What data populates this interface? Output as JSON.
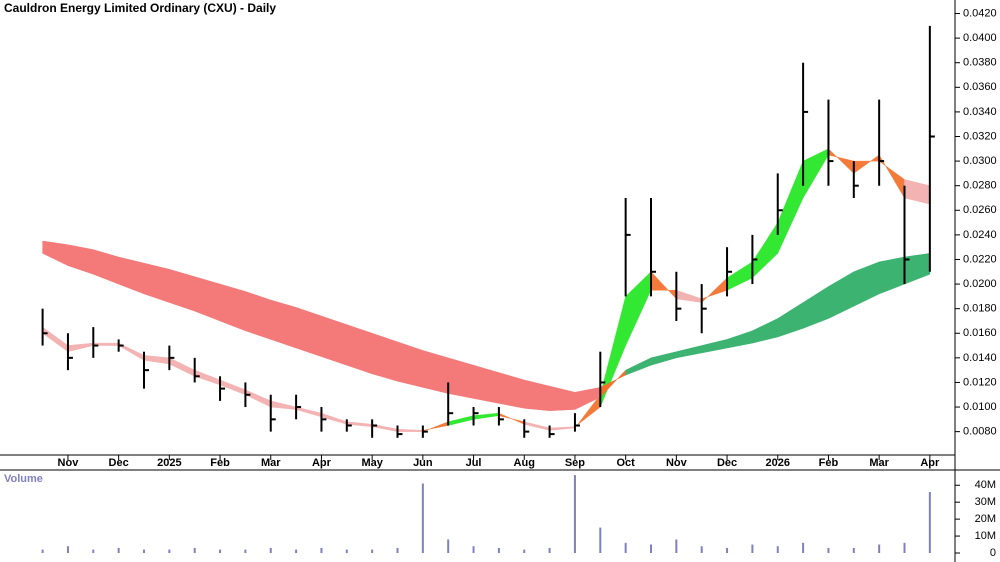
{
  "chart_data": {
    "type": "ohlc",
    "title": "Cauldron Energy Limited Ordinary (CXU) - Daily",
    "categories": [
      null,
      "Nov",
      null,
      "Dec",
      null,
      "2025",
      null,
      "Feb",
      null,
      "Mar",
      null,
      "Apr",
      null,
      "May",
      null,
      "Jun",
      null,
      "Jul",
      null,
      "Aug",
      null,
      "Sep",
      null,
      "Oct",
      null,
      "Nov",
      null,
      "Dec",
      null,
      "2026",
      null,
      "Feb",
      null,
      "Mar",
      null,
      "Apr"
    ],
    "high": [
      0.018,
      0.016,
      0.0165,
      0.0155,
      0.0145,
      0.015,
      0.014,
      0.0125,
      0.012,
      0.011,
      0.011,
      0.01,
      0.009,
      0.009,
      0.0085,
      0.0085,
      0.012,
      0.01,
      0.01,
      0.009,
      0.0085,
      0.0095,
      0.0145,
      0.027,
      0.027,
      0.021,
      0.02,
      0.023,
      0.024,
      0.029,
      0.038,
      0.035,
      0.03,
      0.035,
      0.028,
      0.041
    ],
    "low": [
      0.015,
      0.013,
      0.014,
      0.0145,
      0.0115,
      0.013,
      0.012,
      0.0105,
      0.01,
      0.008,
      0.009,
      0.008,
      0.008,
      0.0075,
      0.0075,
      0.0075,
      0.0085,
      0.0085,
      0.0085,
      0.0075,
      0.0075,
      0.008,
      0.01,
      0.019,
      0.019,
      0.017,
      0.016,
      0.019,
      0.02,
      0.024,
      0.028,
      0.028,
      0.027,
      0.028,
      0.02,
      0.021
    ],
    "close": [
      0.016,
      0.014,
      0.015,
      0.015,
      0.013,
      0.014,
      0.0125,
      0.0115,
      0.011,
      0.009,
      0.01,
      0.009,
      0.0085,
      0.0085,
      0.0078,
      0.008,
      0.0095,
      0.0095,
      0.009,
      0.008,
      0.0078,
      0.0085,
      0.012,
      0.024,
      0.021,
      0.018,
      0.018,
      0.021,
      0.022,
      0.026,
      0.034,
      0.03,
      0.028,
      0.03,
      0.022,
      0.032
    ],
    "ribbons": [
      {
        "fast": [
          0.016,
          0.0145,
          0.015,
          0.015,
          0.0138,
          0.0135,
          0.0125,
          0.0118,
          0.011,
          0.01,
          0.0098,
          0.0092,
          0.0086,
          0.0084,
          0.008,
          0.008,
          0.0088,
          0.0093,
          0.0095,
          0.0086,
          0.0081,
          0.0083,
          0.011,
          0.019,
          0.021,
          0.0188,
          0.0185,
          0.0205,
          0.0218,
          0.025,
          0.03,
          0.031,
          0.029,
          0.0305,
          0.027,
          0.0265
        ],
        "slow": [
          0.0165,
          0.015,
          0.0152,
          0.0152,
          0.0142,
          0.014,
          0.013,
          0.0122,
          0.0114,
          0.0105,
          0.01,
          0.0095,
          0.0088,
          0.0086,
          0.0082,
          0.0081,
          0.0085,
          0.009,
          0.0093,
          0.0088,
          0.0083,
          0.0084,
          0.01,
          0.015,
          0.0195,
          0.0195,
          0.0188,
          0.0195,
          0.0205,
          0.0225,
          0.027,
          0.0305,
          0.03,
          0.03,
          0.0285,
          0.028
        ],
        "up_color": "#33e833",
        "down_color": "#f4b3b3",
        "cross_color": "#f47a3a"
      },
      {
        "fast": [
          0.0225,
          0.0215,
          0.0208,
          0.02,
          0.0192,
          0.0185,
          0.0178,
          0.017,
          0.0162,
          0.0155,
          0.0148,
          0.0141,
          0.0134,
          0.0127,
          0.0121,
          0.0116,
          0.0111,
          0.0107,
          0.0103,
          0.0099,
          0.0097,
          0.0098,
          0.0108,
          0.013,
          0.014,
          0.0145,
          0.015,
          0.0155,
          0.0162,
          0.0172,
          0.0185,
          0.0198,
          0.021,
          0.0218,
          0.0222,
          0.0225
        ],
        "slow": [
          0.0235,
          0.0232,
          0.0228,
          0.0222,
          0.0217,
          0.0212,
          0.0206,
          0.02,
          0.0194,
          0.0187,
          0.0181,
          0.0174,
          0.0167,
          0.016,
          0.0153,
          0.0146,
          0.014,
          0.0134,
          0.0128,
          0.0122,
          0.0117,
          0.0112,
          0.0116,
          0.0126,
          0.0134,
          0.014,
          0.0144,
          0.0148,
          0.0152,
          0.0157,
          0.0164,
          0.0172,
          0.0182,
          0.0192,
          0.02,
          0.0208
        ],
        "up_color": "#3cb371",
        "down_color": "#f47a7a",
        "cross_color": "#f4702a"
      }
    ],
    "ylim": [
      0.0061,
      0.0431
    ],
    "yticks": [
      {
        "value": 0.008,
        "label": "0.0080"
      },
      {
        "value": 0.01,
        "label": "0.0100"
      },
      {
        "value": 0.012,
        "label": "0.0120"
      },
      {
        "value": 0.014,
        "label": "0.0140"
      },
      {
        "value": 0.016,
        "label": "0.0160"
      },
      {
        "value": 0.018,
        "label": "0.0180"
      },
      {
        "value": 0.02,
        "label": "0.0200"
      },
      {
        "value": 0.022,
        "label": "0.0220"
      },
      {
        "value": 0.024,
        "label": "0.0240"
      },
      {
        "value": 0.026,
        "label": "0.0260"
      },
      {
        "value": 0.028,
        "label": "0.0280"
      },
      {
        "value": 0.03,
        "label": "0.0300"
      },
      {
        "value": 0.032,
        "label": "0.0320"
      },
      {
        "value": 0.034,
        "label": "0.0340"
      },
      {
        "value": 0.036,
        "label": "0.0360"
      },
      {
        "value": 0.038,
        "label": "0.0380"
      },
      {
        "value": 0.04,
        "label": "0.0400"
      },
      {
        "value": 0.042,
        "label": "0.0420"
      }
    ],
    "volume": {
      "label": "Volume",
      "color": "#8080c0",
      "values": [
        2,
        4,
        2,
        3,
        2,
        2,
        3,
        2,
        2,
        3,
        2,
        3,
        2,
        2,
        3,
        41,
        8,
        4,
        3,
        2,
        3,
        46,
        15,
        6,
        5,
        8,
        4,
        3,
        5,
        4,
        6,
        3,
        3,
        5,
        6,
        36
      ],
      "ylim": [
        0,
        49
      ],
      "yticks": [
        0,
        {
          "value": 10,
          "label": "10M"
        },
        {
          "value": 20,
          "label": "20M"
        },
        {
          "value": 30,
          "label": "30M"
        },
        {
          "value": 40,
          "label": "40M"
        }
      ]
    }
  }
}
